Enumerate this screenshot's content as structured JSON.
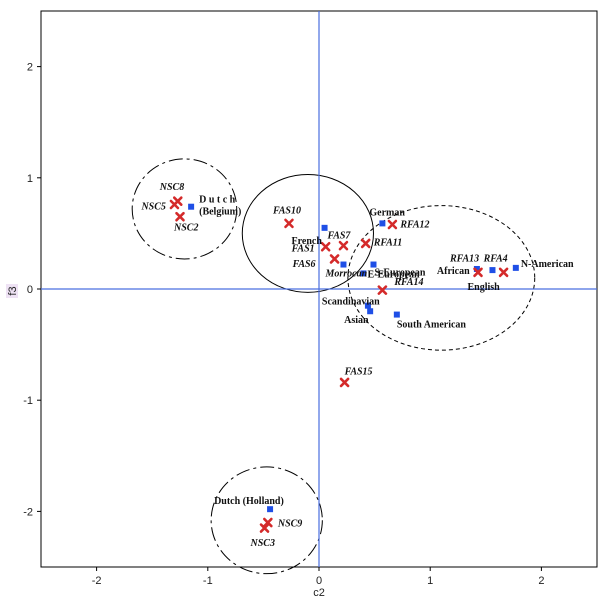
{
  "chart_data": {
    "type": "scatter",
    "xlabel": "c2",
    "ylabel": "f3",
    "xlim": [
      -2.5,
      2.5
    ],
    "ylim": [
      -2.5,
      2.5
    ],
    "x_ticks": [
      -2,
      -1,
      0,
      1,
      2
    ],
    "y_ticks": [
      -2,
      -1,
      0,
      1,
      2
    ],
    "grid": false,
    "reference_lines": {
      "x": 0,
      "y": 0
    },
    "series": [
      {
        "marker": "square",
        "color": "#1f4fe6",
        "points": [
          {
            "label": "Dutch (Belgium)",
            "x": -1.15,
            "y": 0.74
          },
          {
            "label": "French",
            "x": 0.05,
            "y": 0.55
          },
          {
            "label": "Morrocan",
            "x": 0.22,
            "y": 0.22
          },
          {
            "label": "German",
            "x": 0.57,
            "y": 0.59
          },
          {
            "label": "S-European",
            "x": 0.49,
            "y": 0.22
          },
          {
            "label": "E-European",
            "x": 0.4,
            "y": 0.14
          },
          {
            "label": "Scandinavian",
            "x": 0.44,
            "y": -0.15
          },
          {
            "label": "Asian",
            "x": 0.46,
            "y": -0.2
          },
          {
            "label": "South American",
            "x": 0.7,
            "y": -0.23
          },
          {
            "label": "African",
            "x": 1.42,
            "y": 0.18
          },
          {
            "label": "English",
            "x": 1.56,
            "y": 0.17
          },
          {
            "label": "N-American",
            "x": 1.77,
            "y": 0.19
          },
          {
            "label": "Dutch (Holland)",
            "x": -0.44,
            "y": -1.98
          }
        ]
      },
      {
        "marker": "x",
        "color": "#d42a2a",
        "points": [
          {
            "label": "NSC8",
            "x": -1.27,
            "y": 0.79
          },
          {
            "label": "NSC5",
            "x": -1.3,
            "y": 0.76
          },
          {
            "label": "NSC2",
            "x": -1.25,
            "y": 0.65
          },
          {
            "label": "FAS10",
            "x": -0.27,
            "y": 0.59
          },
          {
            "label": "FAS7",
            "x": 0.22,
            "y": 0.39
          },
          {
            "label": "FAS1",
            "x": 0.06,
            "y": 0.38
          },
          {
            "label": "FAS6",
            "x": 0.14,
            "y": 0.27
          },
          {
            "label": "RFA12",
            "x": 0.66,
            "y": 0.58
          },
          {
            "label": "RFA11",
            "x": 0.42,
            "y": 0.41
          },
          {
            "label": "RFA13",
            "x": 1.43,
            "y": 0.15
          },
          {
            "label": "RFA4",
            "x": 1.66,
            "y": 0.15
          },
          {
            "label": "RFA14",
            "x": 0.57,
            "y": -0.01
          },
          {
            "label": "FAS15",
            "x": 0.23,
            "y": -0.84
          },
          {
            "label": "NSC9",
            "x": -0.46,
            "y": -2.1
          },
          {
            "label": "NSC3",
            "x": -0.49,
            "y": -2.15
          }
        ]
      }
    ],
    "cluster_outlines": [
      {
        "style": "long-dash",
        "cx": -1.21,
        "cy": 0.72,
        "rx": 0.47,
        "ry": 0.45
      },
      {
        "style": "solid",
        "cx": -0.1,
        "cy": 0.5,
        "rx": 0.59,
        "ry": 0.53
      },
      {
        "style": "short-dash",
        "cx": 1.1,
        "cy": 0.1,
        "rx": 0.84,
        "ry": 0.65
      },
      {
        "style": "long-dash",
        "cx": -0.47,
        "cy": -2.08,
        "rx": 0.5,
        "ry": 0.48
      }
    ]
  }
}
